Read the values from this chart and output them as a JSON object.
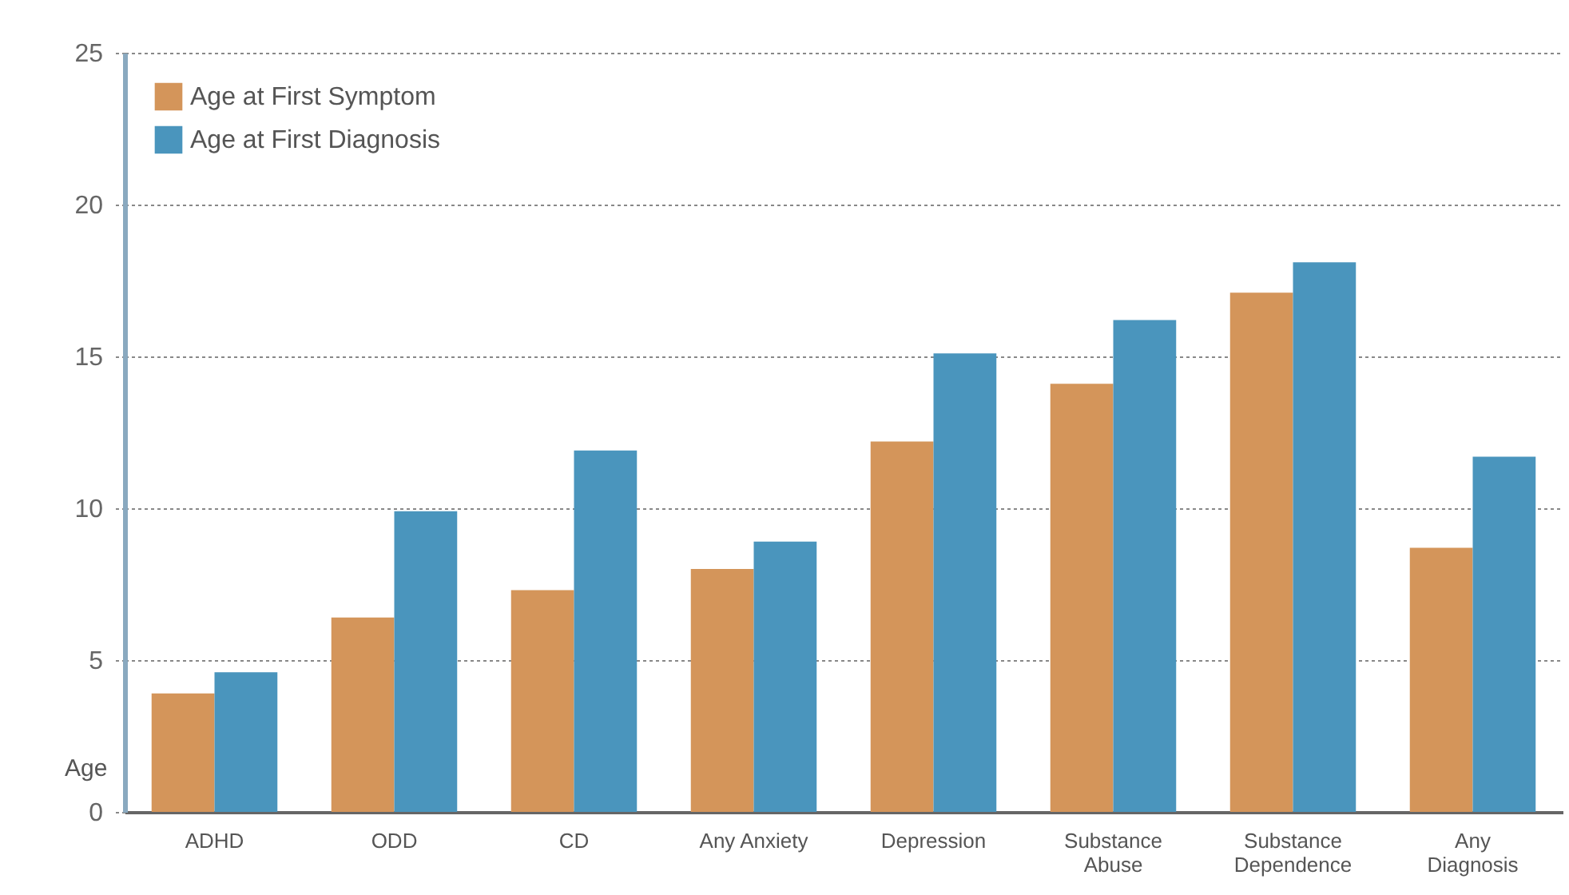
{
  "chart_data": {
    "type": "bar",
    "ylabel": "Age",
    "categories": [
      "ADHD",
      "ODD",
      "CD",
      "Any Anxiety",
      "Depression",
      "Substance Abuse",
      "Substance Dependence",
      "Any Diagnosis"
    ],
    "series": [
      {
        "name": "Age at First Symptom",
        "color": "#d4955a",
        "values": [
          3.9,
          6.4,
          7.3,
          8.0,
          12.2,
          14.1,
          17.1,
          8.7
        ]
      },
      {
        "name": "Age at First Diagnosis",
        "color": "#4a95bd",
        "values": [
          4.6,
          9.9,
          11.9,
          8.9,
          15.1,
          16.2,
          18.1,
          11.7
        ]
      }
    ],
    "ylim": [
      0,
      25
    ],
    "yticks": [
      0,
      5,
      10,
      15,
      20,
      25
    ],
    "grid": "y",
    "legend": "top left"
  }
}
